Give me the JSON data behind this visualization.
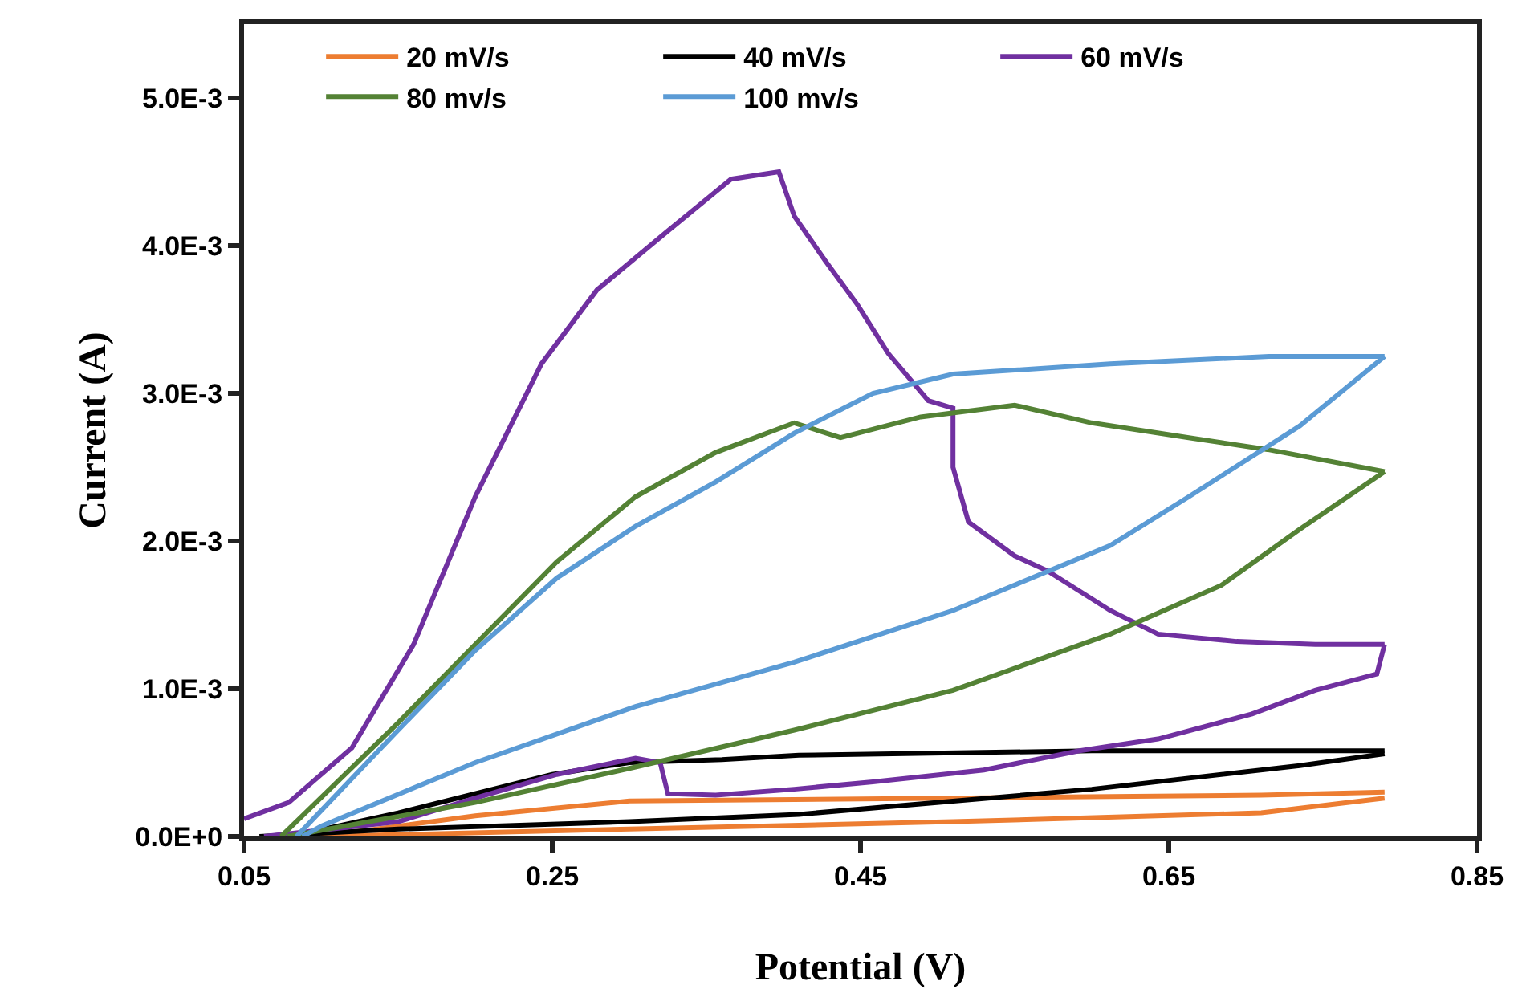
{
  "chart_data": {
    "type": "line",
    "xlabel": "Potential (V)",
    "ylabel": "Current (A)",
    "xlim": [
      0.05,
      0.85
    ],
    "xticks": [
      0.05,
      0.25,
      0.45,
      0.65,
      0.85
    ],
    "ylim": [
      0,
      0.0055
    ],
    "yticks": [
      {
        "value": 0,
        "label": "0.0E+0"
      },
      {
        "value": 0.001,
        "label": "1.0E-3"
      },
      {
        "value": 0.002,
        "label": "2.0E-3"
      },
      {
        "value": 0.003,
        "label": "3.0E-3"
      },
      {
        "value": 0.004,
        "label": "4.0E-3"
      },
      {
        "value": 0.005,
        "label": "5.0E-3"
      }
    ],
    "grid": false,
    "legend": "top",
    "marker": "none",
    "line_style": "solid",
    "series": [
      {
        "name": "20 mV/s",
        "color": "#ed7d31",
        "x": [
          0.1,
          0.2,
          0.3,
          0.51,
          0.71,
          0.79
        ],
        "values": [
          0,
          0.00014,
          0.00024,
          0.00026,
          0.00028,
          0.0003
        ]
      },
      {
        "color": "#ed7d31",
        "x": [
          0.1,
          0.3,
          0.51,
          0.71,
          0.79
        ],
        "values": [
          0,
          5e-05,
          0.0001,
          0.00016,
          0.00026
        ]
      },
      {
        "name": "40 mV/s",
        "color": "#000000",
        "x": [
          0.08,
          0.15,
          0.25,
          0.3,
          0.36,
          0.41,
          0.6,
          0.79
        ],
        "values": [
          0,
          0.00016,
          0.00042,
          0.0005,
          0.00052,
          0.00055,
          0.00058,
          0.00058
        ]
      },
      {
        "color": "#000000",
        "x": [
          0.06,
          0.15,
          0.3,
          0.41,
          0.6,
          0.735,
          0.79
        ],
        "values": [
          0,
          5e-05,
          0.0001,
          0.00015,
          0.00032,
          0.00048,
          0.00056
        ]
      },
      {
        "name": "60 mV/s",
        "color": "#7030a0",
        "x": [
          0.05,
          0.079,
          0.12,
          0.16,
          0.2,
          0.243,
          0.279,
          0.325,
          0.366,
          0.397,
          0.407,
          0.427,
          0.448,
          0.468,
          0.494,
          0.51,
          0.51,
          0.52,
          0.55,
          0.571,
          0.612,
          0.643,
          0.694,
          0.745,
          0.79
        ],
        "values": [
          0.00012,
          0.00023,
          0.0006,
          0.0013,
          0.0023,
          0.0032,
          0.0037,
          0.0041,
          0.00445,
          0.0045,
          0.0042,
          0.0039,
          0.0036,
          0.00327,
          0.00295,
          0.0029,
          0.0025,
          0.00213,
          0.0019,
          0.0018,
          0.00153,
          0.00137,
          0.00132,
          0.0013,
          0.0013
        ]
      },
      {
        "color": "#7030a0",
        "x": [
          0.063,
          0.15,
          0.2,
          0.253,
          0.304,
          0.32,
          0.325,
          0.356,
          0.407,
          0.458,
          0.53,
          0.592,
          0.643,
          0.704,
          0.745,
          0.785,
          0.79
        ],
        "values": [
          0,
          0.0001,
          0.00026,
          0.00042,
          0.00053,
          0.0005,
          0.00029,
          0.00028,
          0.00032,
          0.00037,
          0.00045,
          0.00058,
          0.00066,
          0.00083,
          0.00099,
          0.0011,
          0.0013
        ]
      },
      {
        "name": "80 mv/s",
        "color": "#548235",
        "x": [
          0.074,
          0.15,
          0.2,
          0.253,
          0.304,
          0.356,
          0.407,
          0.437,
          0.489,
          0.55,
          0.6,
          0.663,
          0.714,
          0.79
        ],
        "values": [
          0,
          0.00077,
          0.0013,
          0.00186,
          0.0023,
          0.0026,
          0.0028,
          0.0027,
          0.00284,
          0.00292,
          0.0028,
          0.0027,
          0.00262,
          0.00247
        ]
      },
      {
        "color": "#548235",
        "x": [
          0.078,
          0.2,
          0.304,
          0.407,
          0.51,
          0.612,
          0.684,
          0.735,
          0.79
        ],
        "values": [
          0,
          0.00023,
          0.00047,
          0.00072,
          0.00099,
          0.00137,
          0.0017,
          0.00208,
          0.00247
        ]
      },
      {
        "name": "100 mv/s",
        "color": "#5b9bd5",
        "x": [
          0.084,
          0.15,
          0.2,
          0.253,
          0.304,
          0.356,
          0.407,
          0.458,
          0.51,
          0.612,
          0.715,
          0.79
        ],
        "values": [
          0,
          0.00072,
          0.00126,
          0.00175,
          0.0021,
          0.0024,
          0.00273,
          0.003,
          0.00313,
          0.0032,
          0.00325,
          0.00325
        ]
      },
      {
        "color": "#5b9bd5",
        "x": [
          0.088,
          0.1,
          0.2,
          0.304,
          0.407,
          0.51,
          0.612,
          0.663,
          0.735,
          0.79
        ],
        "values": [
          0,
          7e-05,
          0.0005,
          0.00088,
          0.00118,
          0.00153,
          0.00197,
          0.0023,
          0.00278,
          0.00325
        ]
      }
    ]
  }
}
